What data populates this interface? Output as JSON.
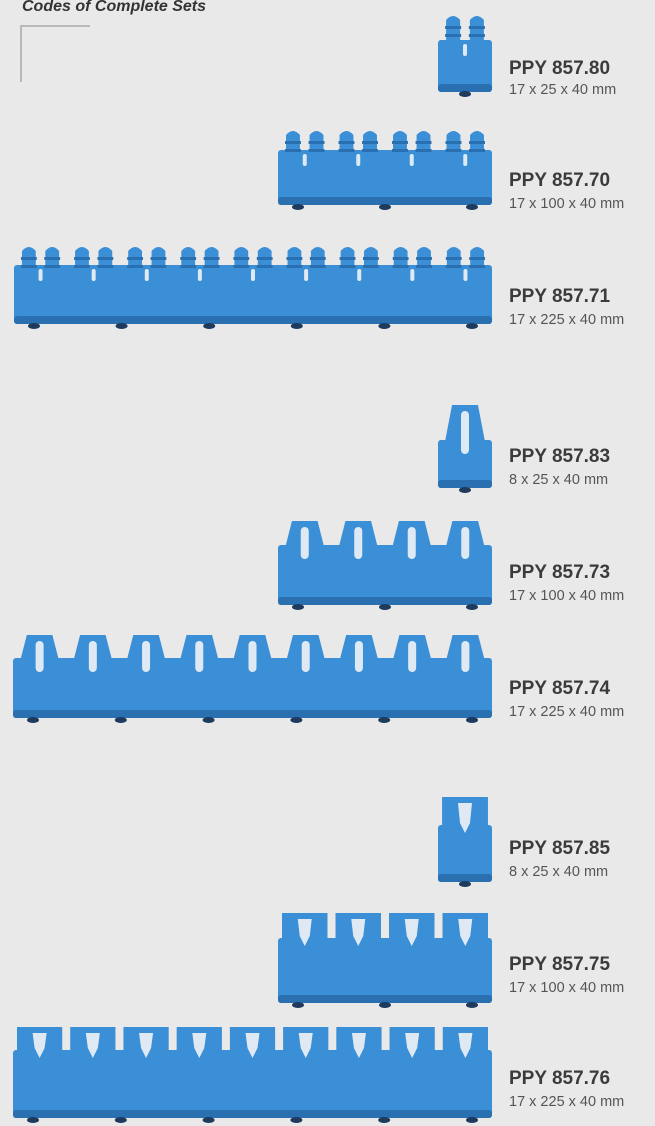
{
  "header": {
    "title": "Codes of Complete Sets"
  },
  "colors": {
    "rack_blue": "#3b8fd6",
    "rack_dark": "#2a6fb0",
    "foot": "#1e3a5c",
    "background": "#e9e9e9"
  },
  "products": [
    {
      "code": "PPY 857.80",
      "dims": "17 x 25 x 40 mm",
      "style": "double-peg",
      "slots": 1
    },
    {
      "code": "PPY 857.70",
      "dims": "17 x 100 x 40 mm",
      "style": "double-peg",
      "slots": 4
    },
    {
      "code": "PPY 857.71",
      "dims": "17 x 225 x 40 mm",
      "style": "double-peg",
      "slots": 9
    },
    {
      "code": "PPY 857.83",
      "dims": "8 x 25 x 40 mm",
      "style": "tower",
      "slots": 1
    },
    {
      "code": "PPY 857.73",
      "dims": "17 x 100 x 40 mm",
      "style": "tower",
      "slots": 4
    },
    {
      "code": "PPY 857.74",
      "dims": "17 x 225 x 40 mm",
      "style": "tower",
      "slots": 9
    },
    {
      "code": "PPY 857.85",
      "dims": "8 x 25 x 40 mm",
      "style": "wedge",
      "slots": 1
    },
    {
      "code": "PPY 857.75",
      "dims": "17 x 100 x 40 mm",
      "style": "wedge",
      "slots": 4
    },
    {
      "code": "PPY 857.76",
      "dims": "17 x 225 x 40 mm",
      "style": "wedge",
      "slots": 9
    }
  ]
}
